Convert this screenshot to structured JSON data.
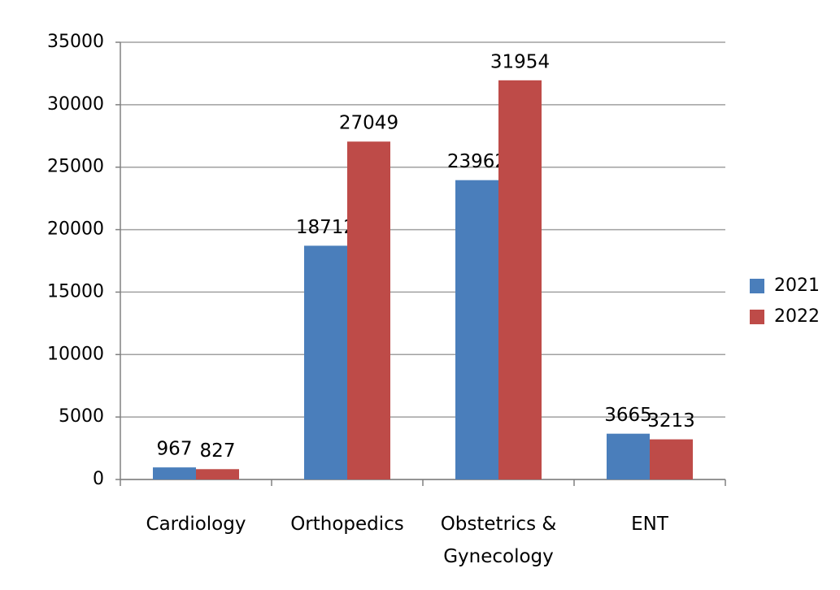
{
  "chart_data": {
    "type": "bar",
    "categories": [
      "Cardiology",
      "Orthopedics",
      "Obstetrics & Gynecology",
      "ENT"
    ],
    "series": [
      {
        "name": "2021",
        "color": "#4a7ebb",
        "values": [
          967,
          18712,
          23962,
          3665
        ]
      },
      {
        "name": "2022",
        "color": "#be4b48",
        "values": [
          827,
          27049,
          31954,
          3213
        ]
      }
    ],
    "ylim": [
      0,
      35000
    ],
    "yticks": [
      0,
      5000,
      10000,
      15000,
      20000,
      25000,
      30000,
      35000
    ],
    "grid": true,
    "legend": "right"
  }
}
